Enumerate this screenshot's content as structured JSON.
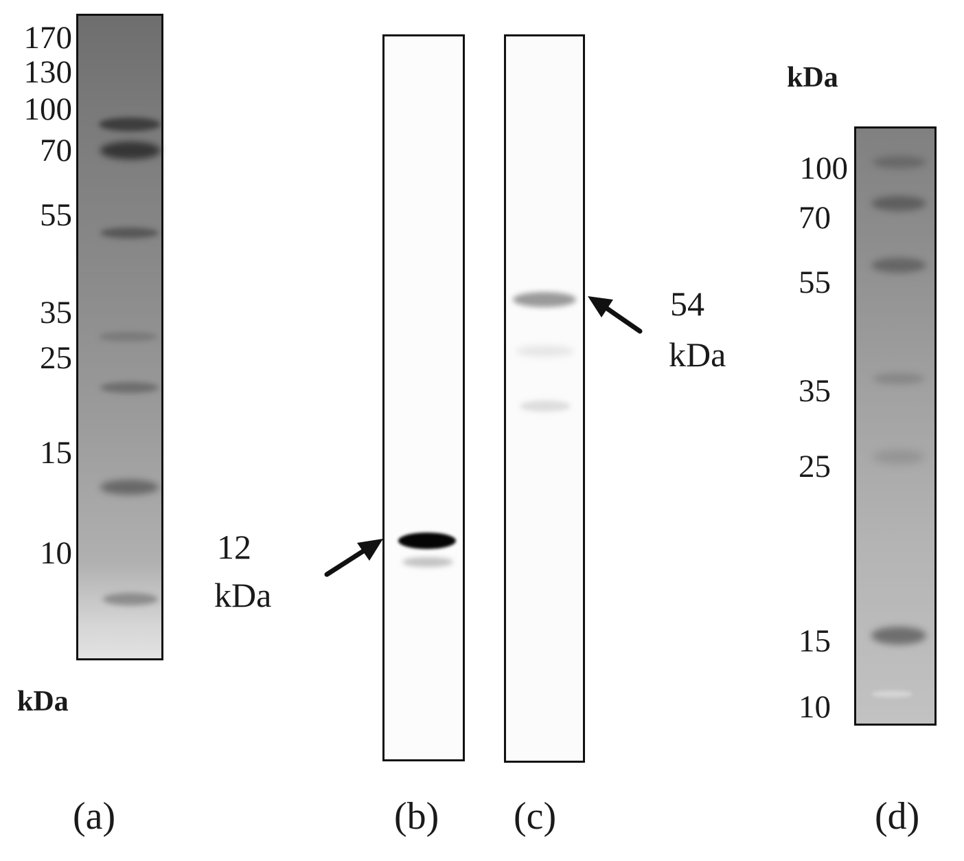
{
  "panels": [
    {
      "id": "a",
      "label": "(a)",
      "unit_label": "kDa",
      "markers": [
        "170",
        "130",
        "100",
        "70",
        "55",
        "35",
        "25",
        "15",
        "10"
      ]
    },
    {
      "id": "b",
      "label": "(b)",
      "annotation": {
        "value": "12",
        "unit": "kDa"
      }
    },
    {
      "id": "c",
      "label": "(c)",
      "annotation": {
        "value": "54",
        "unit": "kDa"
      }
    },
    {
      "id": "d",
      "label": "(d)",
      "unit_label": "kDa",
      "markers": [
        "100",
        "70",
        "55",
        "35",
        "25",
        "15",
        "10"
      ]
    }
  ],
  "colors": {
    "border": "#111111",
    "arrow": "#111111",
    "strong_band": "#050505"
  },
  "icons": [
    "arrow-right-up-icon",
    "arrow-left-up-icon"
  ]
}
